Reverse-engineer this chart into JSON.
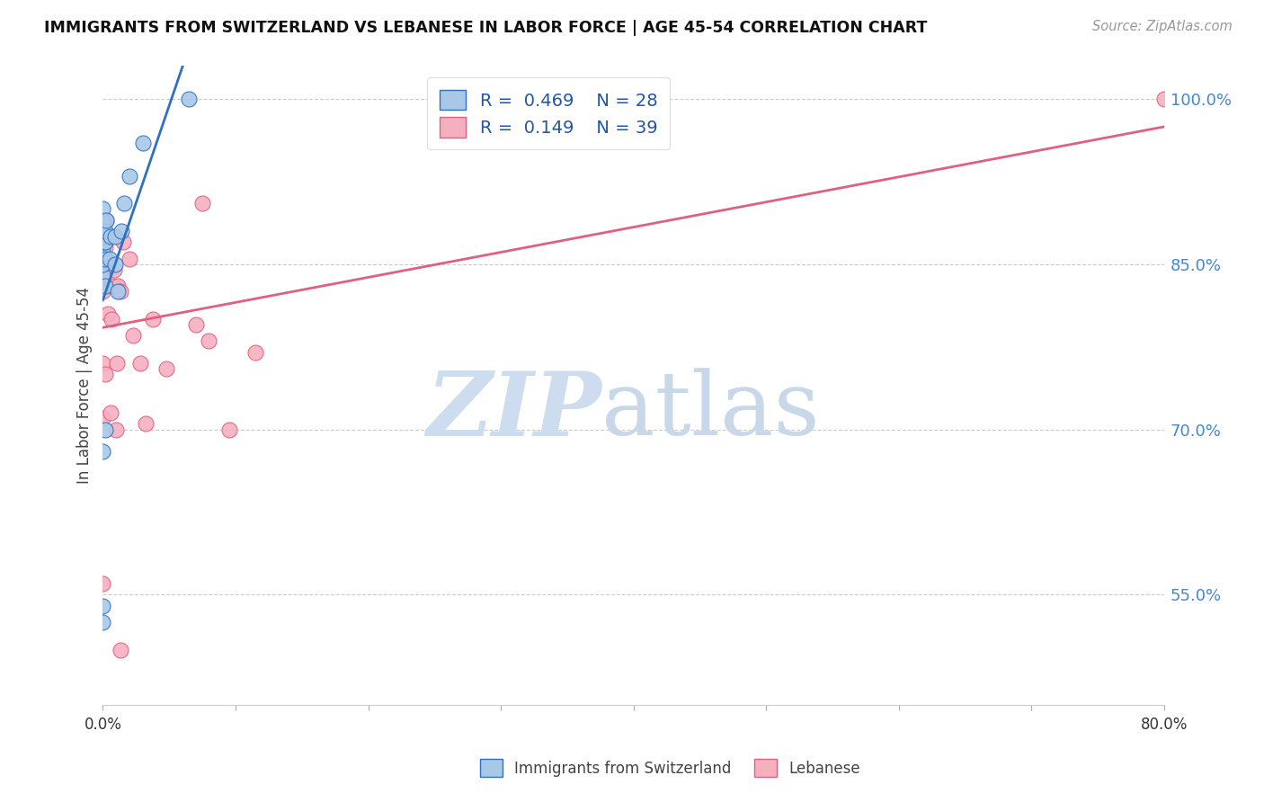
{
  "title": "IMMIGRANTS FROM SWITZERLAND VS LEBANESE IN LABOR FORCE | AGE 45-54 CORRELATION CHART",
  "source": "Source: ZipAtlas.com",
  "ylabel": "In Labor Force | Age 45-54",
  "xlim": [
    0.0,
    80.0
  ],
  "ylim": [
    45.0,
    103.0
  ],
  "yticks": [
    55.0,
    70.0,
    85.0,
    100.0
  ],
  "ytick_labels": [
    "55.0%",
    "70.0%",
    "85.0%",
    "100.0%"
  ],
  "legend_r_swiss": "0.469",
  "legend_n_swiss": "28",
  "legend_r_leb": "0.149",
  "legend_n_leb": "39",
  "legend_label_swiss": "Immigrants from Switzerland",
  "legend_label_leb": "Lebanese",
  "swiss_color": "#a8c8e8",
  "leb_color": "#f5b0c0",
  "swiss_edge_color": "#3070c0",
  "leb_edge_color": "#e06080",
  "swiss_line_color": "#3070c0",
  "leb_line_color": "#e06080",
  "swiss_x": [
    0.0,
    0.0,
    0.0,
    0.0,
    0.0,
    0.0,
    0.0,
    0.0,
    0.0,
    0.0,
    0.0,
    0.0,
    0.2,
    0.2,
    0.2,
    0.2,
    0.2,
    0.25,
    0.5,
    0.55,
    0.9,
    0.95,
    1.1,
    1.4,
    1.6,
    2.0,
    3.0,
    6.5
  ],
  "swiss_y": [
    52.5,
    54.0,
    68.0,
    84.0,
    85.0,
    86.5,
    87.0,
    87.5,
    88.0,
    88.5,
    89.0,
    90.0,
    70.0,
    83.0,
    85.5,
    87.0,
    88.0,
    89.0,
    85.5,
    87.5,
    85.0,
    87.5,
    82.5,
    88.0,
    90.5,
    93.0,
    96.0,
    100.0
  ],
  "leb_x": [
    0.0,
    0.0,
    0.0,
    0.0,
    0.0,
    0.0,
    0.0,
    0.0,
    0.0,
    0.0,
    0.0,
    0.2,
    0.2,
    0.2,
    0.25,
    0.4,
    0.45,
    0.6,
    0.65,
    0.8,
    0.85,
    1.0,
    1.05,
    1.1,
    1.3,
    1.35,
    1.55,
    2.0,
    2.3,
    2.8,
    3.2,
    3.8,
    4.8,
    7.0,
    7.5,
    8.0,
    9.5,
    11.5,
    80.0
  ],
  "leb_y": [
    56.0,
    71.0,
    76.0,
    82.5,
    84.5,
    85.5,
    86.0,
    87.0,
    87.5,
    88.0,
    89.0,
    75.0,
    85.5,
    86.5,
    89.0,
    80.5,
    87.5,
    71.5,
    80.0,
    83.0,
    84.5,
    70.0,
    76.0,
    83.0,
    50.0,
    82.5,
    87.0,
    85.5,
    78.5,
    76.0,
    70.5,
    80.0,
    75.5,
    79.5,
    90.5,
    78.0,
    70.0,
    77.0,
    100.0
  ],
  "background_color": "#ffffff",
  "watermark_zip": "ZIP",
  "watermark_atlas": "atlas",
  "watermark_color": "#cddcee"
}
